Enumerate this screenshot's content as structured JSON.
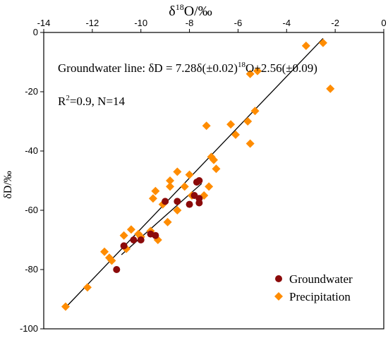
{
  "chart_data": {
    "type": "scatter",
    "title": "",
    "xlabel": "δ18O/‰",
    "xlabel_parts": {
      "delta": "δ",
      "sup": "18",
      "rest": "O/‰"
    },
    "ylabel": "δD/‰",
    "xlim": [
      -14,
      0
    ],
    "ylim": [
      -100,
      0
    ],
    "x_ticks": [
      -14,
      -12,
      -10,
      -8,
      -6,
      -4,
      -2,
      0
    ],
    "y_ticks": [
      0,
      -20,
      -40,
      -60,
      -80,
      -100
    ],
    "x_tick_labels": [
      "-14",
      "-12",
      "-10",
      "-8",
      "-6",
      "-4",
      "-2",
      "0"
    ],
    "y_tick_labels": [
      "0",
      "-20",
      "-40",
      "-60",
      "-80",
      "-100"
    ],
    "x_axis_position": "top",
    "grid": false,
    "annotations": {
      "equation": {
        "prefix": "Groundwater line:  δD = 7.28δ(±0.02)",
        "sup": "18",
        "suffix": "O+2.56(±0.09)"
      },
      "stats": {
        "pre": "R",
        "sup": "2",
        "post": "=0.9, N=14"
      }
    },
    "legend": {
      "position": "bottom-right"
    },
    "fit_lines": [
      {
        "x": [
          -13.1,
          -2.5
        ],
        "y": [
          -92.8,
          -2.0
        ],
        "color": "#000000"
      },
      {
        "x": [
          -10.8,
          -7.5
        ],
        "y": [
          -75.0,
          -51.0
        ],
        "color": "#000000"
      }
    ],
    "series": [
      {
        "name": "Groundwater",
        "marker": "circle",
        "color": "#8b0a0a",
        "points": [
          [
            -11.0,
            -80.0
          ],
          [
            -10.7,
            -72.0
          ],
          [
            -10.3,
            -70.0
          ],
          [
            -10.0,
            -70.0
          ],
          [
            -9.6,
            -68.0
          ],
          [
            -9.4,
            -68.5
          ],
          [
            -9.0,
            -57.0
          ],
          [
            -8.5,
            -57.0
          ],
          [
            -8.0,
            -58.0
          ],
          [
            -7.8,
            -55.0
          ],
          [
            -7.7,
            -50.5
          ],
          [
            -7.6,
            -50.0
          ],
          [
            -7.6,
            -56.0
          ],
          [
            -7.6,
            -57.5
          ]
        ]
      },
      {
        "name": "Precipitation",
        "marker": "diamond",
        "color": "#ff8c00",
        "points": [
          [
            -13.1,
            -92.5
          ],
          [
            -12.2,
            -86.0
          ],
          [
            -11.5,
            -74.0
          ],
          [
            -11.3,
            -76.0
          ],
          [
            -11.2,
            -77.0
          ],
          [
            -10.7,
            -68.5
          ],
          [
            -10.6,
            -73.0
          ],
          [
            -10.4,
            -66.5
          ],
          [
            -10.1,
            -68.0
          ],
          [
            -10.0,
            -69.0
          ],
          [
            -9.6,
            -67.0
          ],
          [
            -9.5,
            -56.0
          ],
          [
            -9.4,
            -53.5
          ],
          [
            -9.3,
            -70.0
          ],
          [
            -9.1,
            -58.0
          ],
          [
            -8.9,
            -64.0
          ],
          [
            -8.8,
            -50.0
          ],
          [
            -8.8,
            -52.0
          ],
          [
            -8.5,
            -47.0
          ],
          [
            -8.5,
            -60.0
          ],
          [
            -8.2,
            -52.0
          ],
          [
            -8.0,
            -48.0
          ],
          [
            -7.9,
            -55.0
          ],
          [
            -7.4,
            -55.0
          ],
          [
            -7.3,
            -31.5
          ],
          [
            -7.2,
            -52.0
          ],
          [
            -7.1,
            -42.0
          ],
          [
            -7.0,
            -43.0
          ],
          [
            -6.9,
            -46.0
          ],
          [
            -6.3,
            -31.0
          ],
          [
            -6.1,
            -34.5
          ],
          [
            -5.6,
            -30.0
          ],
          [
            -5.5,
            -37.5
          ],
          [
            -5.5,
            -14.0
          ],
          [
            -5.3,
            -26.5
          ],
          [
            -5.2,
            -13.0
          ],
          [
            -3.2,
            -4.5
          ],
          [
            -2.5,
            -3.5
          ],
          [
            -2.2,
            -19.0
          ]
        ]
      }
    ]
  }
}
